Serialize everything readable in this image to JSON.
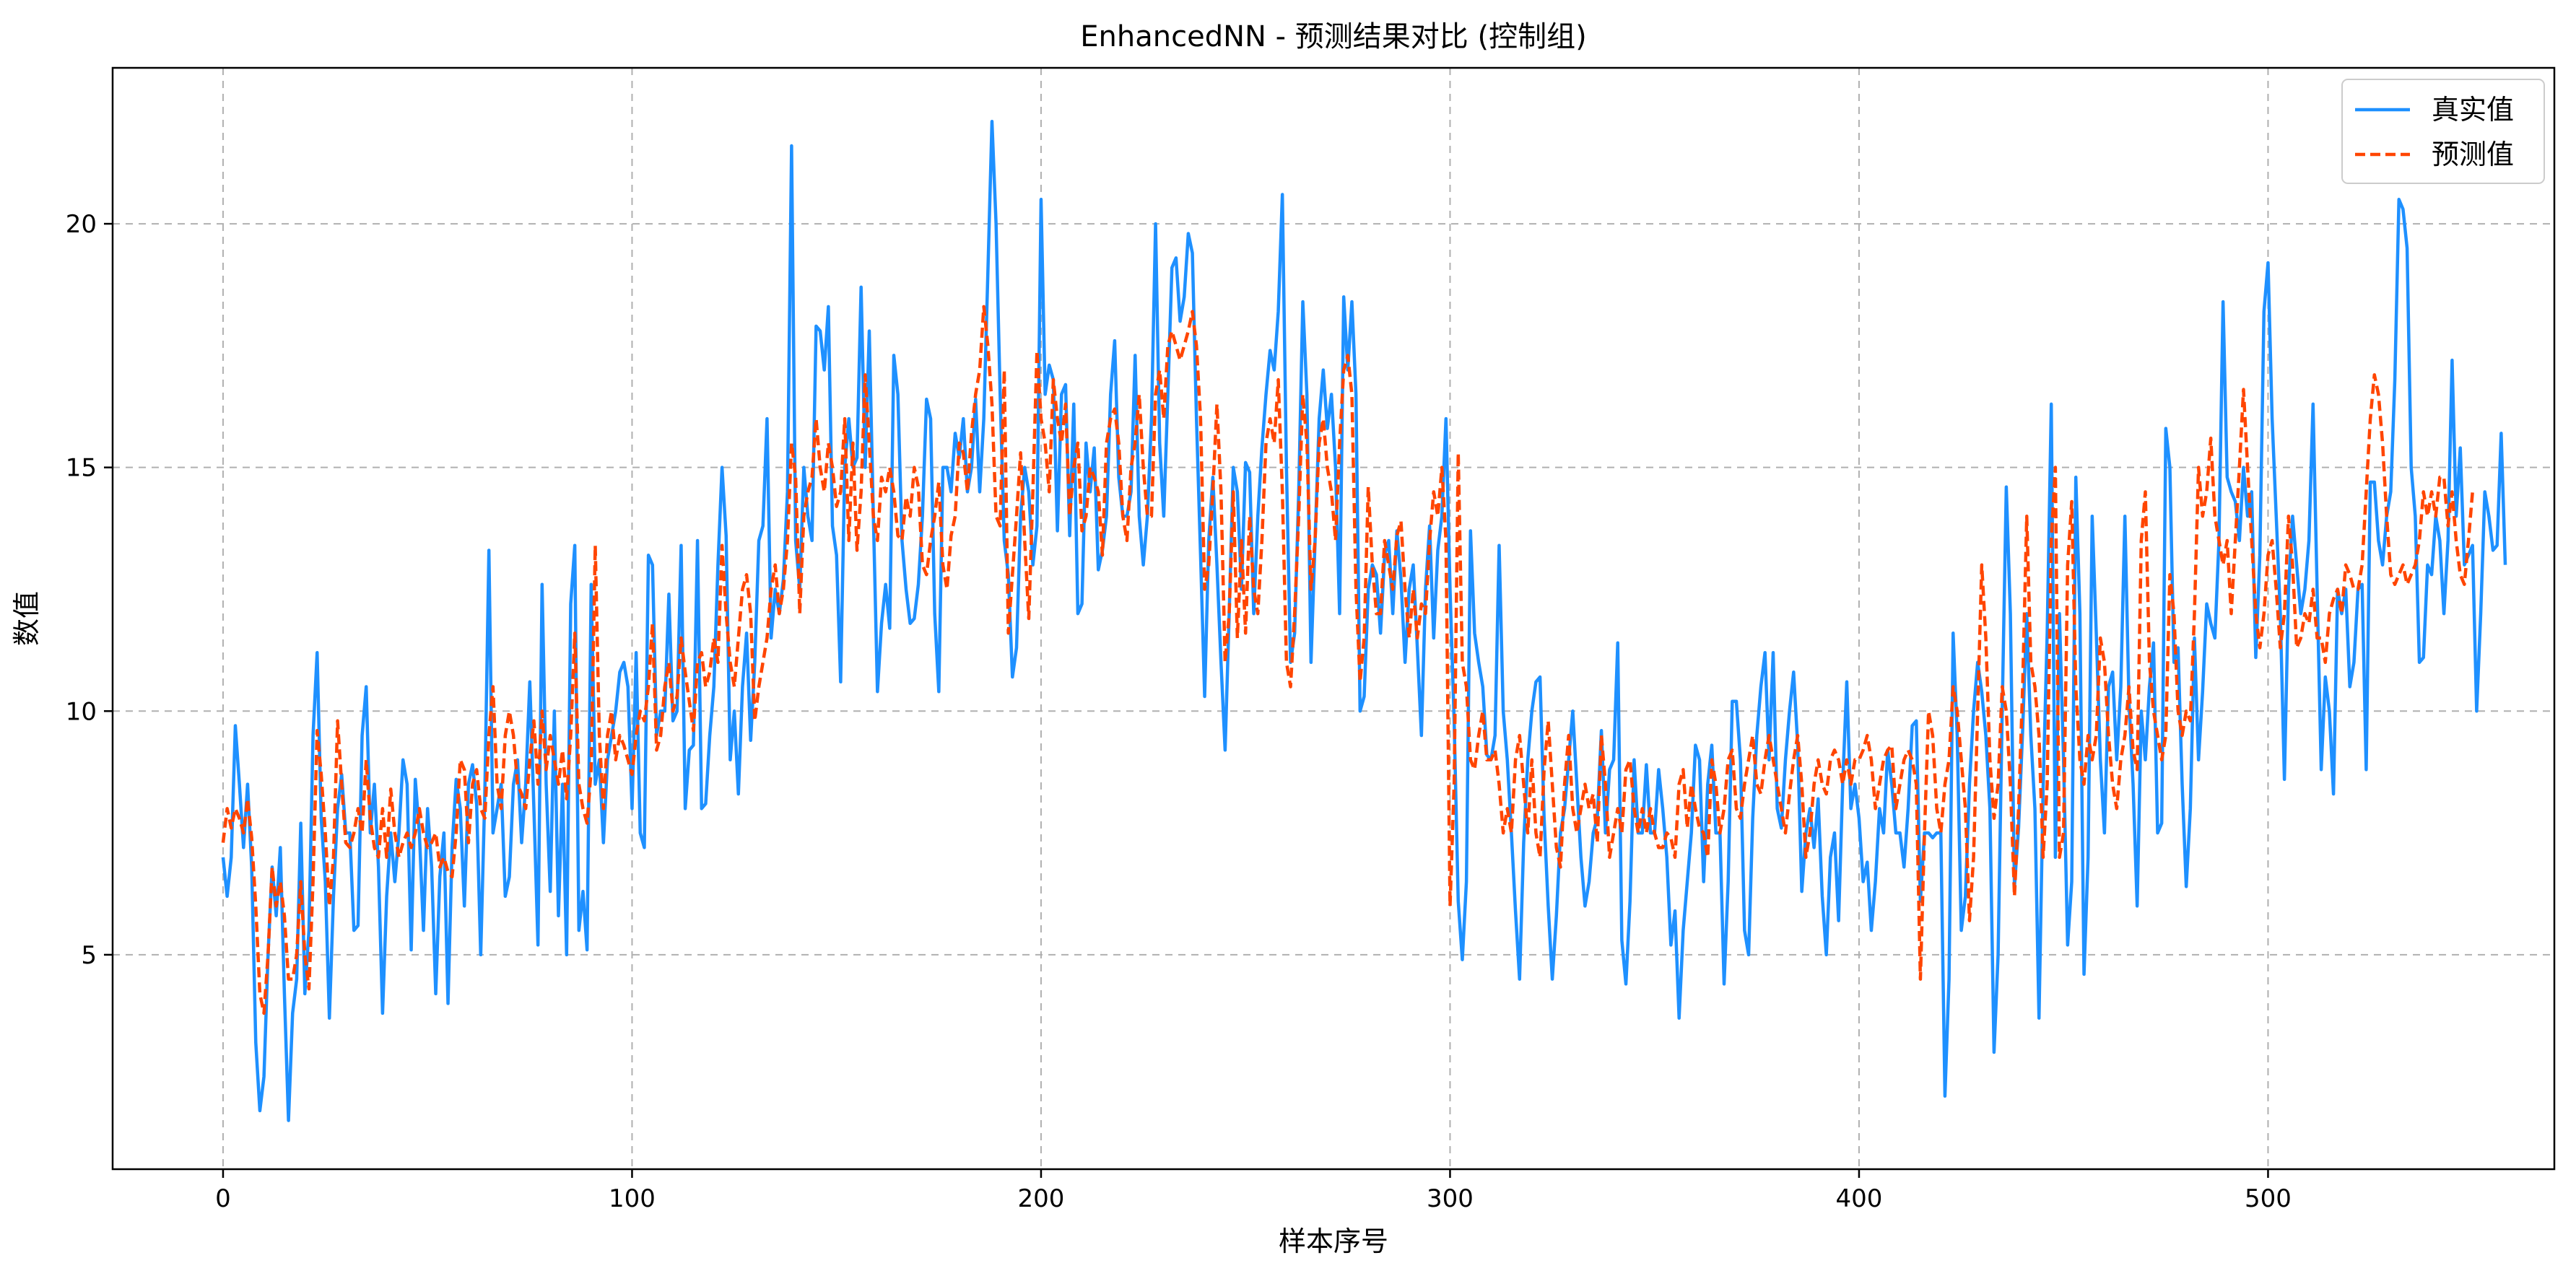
{
  "chart_data": {
    "type": "line",
    "title": "EnhancedNN - 预测结果对比 (控制组)",
    "xlabel": "样本序号",
    "ylabel": "数值",
    "xlim": [
      -27,
      570
    ],
    "ylim": [
      0.6,
      23.2
    ],
    "xticks": [
      0,
      100,
      200,
      300,
      400,
      500
    ],
    "yticks": [
      5,
      10,
      15,
      20
    ],
    "grid": true,
    "grid_style": "dashed",
    "legend_position": "top-right",
    "series": [
      {
        "name": "真实值",
        "color": "#1E90FF",
        "style": "solid",
        "values": [
          7.0,
          6.2,
          7.0,
          9.7,
          8.5,
          7.2,
          8.5,
          6.8,
          3.2,
          1.8,
          2.5,
          5.0,
          6.8,
          5.8,
          7.2,
          4.2,
          1.6,
          3.8,
          4.5,
          7.7,
          4.2,
          5.5,
          9.5,
          11.2,
          7.8,
          6.5,
          3.7,
          6.2,
          8.0,
          8.7,
          7.5,
          7.5,
          5.5,
          5.6,
          9.5,
          10.5,
          7.5,
          8.5,
          6.8,
          3.8,
          6.2,
          7.5,
          6.5,
          7.5,
          9.0,
          8.5,
          5.1,
          8.6,
          7.5,
          5.5,
          8.0,
          6.8,
          4.2,
          6.6,
          7.5,
          4.0,
          7.2,
          8.6,
          8.0,
          6.0,
          8.5,
          8.9,
          8.1,
          5.0,
          8.3,
          13.3,
          7.5,
          8.0,
          8.5,
          6.2,
          6.6,
          8.5,
          9.0,
          7.3,
          8.5,
          10.6,
          8.0,
          5.2,
          12.6,
          8.5,
          6.3,
          10.0,
          5.8,
          8.5,
          5.0,
          12.2,
          13.4,
          5.5,
          6.3,
          5.1,
          12.6,
          8.5,
          9.0,
          7.3,
          9.0,
          9.5,
          10.0,
          10.8,
          11.0,
          10.5,
          8.0,
          11.2,
          7.5,
          7.2,
          13.2,
          13.0,
          9.5,
          10.0,
          10.0,
          12.4,
          9.8,
          10.0,
          13.4,
          8.0,
          9.2,
          9.3,
          13.5,
          8.0,
          8.1,
          9.5,
          10.5,
          13.0,
          15.0,
          13.6,
          9.0,
          10.0,
          8.3,
          10.5,
          11.6,
          9.4,
          11.0,
          13.5,
          13.8,
          16.0,
          11.5,
          12.5,
          12.0,
          12.7,
          14.5,
          21.6,
          13.5,
          12.5,
          15.0,
          14.0,
          13.5,
          17.9,
          17.8,
          17.0,
          18.3,
          13.8,
          13.2,
          10.6,
          15.0,
          16.0,
          15.0,
          15.2,
          18.7,
          15.0,
          17.8,
          14.0,
          10.4,
          11.8,
          12.6,
          11.7,
          17.3,
          16.5,
          13.5,
          12.5,
          11.8,
          11.9,
          12.6,
          14.0,
          16.4,
          16.0,
          12.0,
          10.4,
          15.0,
          15.0,
          14.5,
          15.7,
          15.2,
          16.0,
          14.5,
          15.0,
          16.4,
          14.5,
          16.0,
          19.0,
          22.1,
          20.0,
          16.5,
          13.5,
          12.8,
          10.7,
          11.3,
          14.0,
          15.0,
          14.5,
          13.0,
          13.8,
          20.5,
          16.5,
          17.1,
          16.8,
          13.7,
          16.5,
          16.7,
          13.6,
          16.3,
          12.0,
          12.2,
          15.5,
          14.5,
          15.4,
          12.9,
          13.3,
          14.0,
          16.5,
          17.6,
          14.8,
          14.0,
          14.0,
          14.5,
          17.3,
          14.0,
          13.0,
          14.0,
          16.0,
          20.0,
          15.5,
          14.0,
          16.5,
          19.1,
          19.3,
          18.0,
          18.5,
          19.8,
          19.4,
          16.0,
          13.2,
          10.3,
          13.5,
          14.8,
          13.0,
          11.0,
          9.2,
          12.0,
          15.0,
          14.5,
          12.5,
          15.1,
          14.9,
          12.0,
          14.0,
          15.4,
          16.5,
          17.4,
          17.0,
          18.2,
          20.6,
          15.0,
          11.0,
          11.6,
          14.5,
          18.4,
          16.5,
          11.0,
          13.5,
          16.0,
          17.0,
          15.8,
          16.5,
          15.0,
          12.0,
          18.5,
          17.0,
          18.4,
          16.5,
          10.0,
          10.3,
          12.5,
          13.0,
          12.8,
          11.6,
          13.2,
          13.5,
          12.0,
          13.7,
          12.7,
          11.0,
          12.5,
          13.0,
          11.3,
          9.5,
          12.5,
          13.8,
          11.5,
          13.3,
          14.0,
          16.0,
          12.5,
          9.8,
          6.1,
          4.9,
          6.5,
          13.7,
          11.6,
          11.0,
          10.5,
          9.1,
          9.0,
          9.5,
          13.4,
          10.0,
          9.0,
          7.5,
          5.9,
          4.5,
          7.3,
          9.0,
          10.0,
          10.6,
          10.7,
          7.8,
          6.0,
          4.5,
          5.8,
          7.5,
          8.0,
          9.0,
          10.0,
          8.5,
          7.0,
          6.0,
          6.5,
          7.5,
          7.8,
          9.6,
          7.5,
          8.8,
          9.0,
          11.4,
          5.3,
          4.4,
          6.1,
          9.0,
          7.5,
          7.5,
          8.9,
          7.5,
          7.5,
          8.8,
          8.0,
          7.0,
          5.2,
          5.9,
          3.7,
          5.5,
          6.5,
          7.5,
          9.3,
          9.0,
          6.5,
          8.5,
          9.3,
          7.5,
          7.5,
          4.4,
          6.5,
          10.2,
          10.2,
          9.0,
          5.5,
          5.0,
          7.8,
          9.5,
          10.5,
          11.2,
          9.0,
          11.2,
          8.0,
          7.6,
          9.0,
          10.0,
          10.8,
          9.3,
          6.3,
          7.5,
          8.0,
          7.2,
          8.2,
          6.2,
          5.0,
          7.0,
          7.5,
          5.7,
          8.5,
          10.6,
          8.0,
          8.5,
          7.8,
          6.5,
          6.9,
          5.5,
          6.5,
          8.0,
          7.5,
          9.2,
          8.5,
          7.5,
          7.5,
          6.8,
          8.0,
          9.7,
          9.8,
          6.1,
          7.5,
          7.5,
          7.4,
          7.5,
          7.5,
          2.1,
          4.5,
          11.6,
          9.5,
          5.5,
          6.2,
          8.5,
          10.0,
          11.0,
          10.4,
          9.5,
          8.0,
          3.0,
          5.0,
          10.0,
          14.6,
          12.0,
          6.4,
          7.6,
          9.6,
          12.0,
          9.5,
          8.0,
          3.7,
          8.4,
          11.6,
          16.3,
          7.0,
          12.0,
          9.0,
          5.2,
          6.5,
          14.8,
          12.0,
          4.6,
          7.0,
          14.0,
          11.6,
          9.0,
          7.5,
          10.5,
          10.8,
          9.0,
          10.5,
          14.0,
          10.2,
          8.5,
          6.0,
          10.0,
          9.0,
          10.5,
          11.4,
          7.5,
          7.7,
          15.8,
          15.0,
          11.0,
          11.3,
          8.5,
          6.4,
          8.0,
          11.5,
          9.0,
          10.4,
          12.2,
          11.8,
          11.5,
          13.5,
          18.4,
          14.8,
          14.5,
          14.3,
          13.5,
          15.0,
          14.0,
          14.5,
          11.1,
          13.2,
          18.2,
          19.2,
          16.0,
          14.0,
          12.0,
          8.6,
          12.5,
          14.0,
          13.0,
          12.0,
          12.5,
          13.5,
          16.3,
          12.5,
          8.8,
          10.7,
          10.0,
          8.3,
          12.5,
          12.0,
          12.5,
          10.5,
          11.0,
          12.5,
          12.6,
          8.8,
          14.7,
          14.7,
          13.5,
          13.0,
          14.0,
          14.5,
          16.8,
          20.5,
          20.3,
          19.5,
          15.0,
          14.0,
          11.0,
          11.1,
          13.0,
          12.8,
          14.0,
          13.5,
          12.0,
          13.5,
          17.2,
          14.0,
          15.4,
          13.0,
          13.2,
          13.4,
          10.0,
          12.0,
          14.5,
          14.0,
          13.3,
          13.4,
          15.7,
          13.0
        ]
      },
      {
        "name": "预测值",
        "color": "#FF4500",
        "style": "dashed",
        "values": [
          7.3,
          8.0,
          7.6,
          8.0,
          7.8,
          7.5,
          8.2,
          7.4,
          6.0,
          4.2,
          3.8,
          5.0,
          6.8,
          6.0,
          6.5,
          5.8,
          4.5,
          4.5,
          5.0,
          6.5,
          5.0,
          4.3,
          6.5,
          9.6,
          8.7,
          7.5,
          6.0,
          7.0,
          9.8,
          8.5,
          7.3,
          7.2,
          7.5,
          8.0,
          7.5,
          9.0,
          7.8,
          7.2,
          7.0,
          8.0,
          7.0,
          8.4,
          7.5,
          7.0,
          7.3,
          7.5,
          7.2,
          7.5,
          8.0,
          7.5,
          7.2,
          7.3,
          7.5,
          6.8,
          7.0,
          6.7,
          6.6,
          7.5,
          9.0,
          8.8,
          7.3,
          8.5,
          8.8,
          8.0,
          7.8,
          9.5,
          10.5,
          8.5,
          8.0,
          9.5,
          10.0,
          9.5,
          8.5,
          8.3,
          8.0,
          9.0,
          9.8,
          8.5,
          10.0,
          8.8,
          9.5,
          9.0,
          8.5,
          9.2,
          8.2,
          9.5,
          11.6,
          8.5,
          8.0,
          7.7,
          8.8,
          13.4,
          9.5,
          8.0,
          9.5,
          10.0,
          9.0,
          9.5,
          9.3,
          9.0,
          8.7,
          9.5,
          10.0,
          9.8,
          10.5,
          11.8,
          9.2,
          9.5,
          10.5,
          11.0,
          10.0,
          10.3,
          11.5,
          10.8,
          10.2,
          9.6,
          11.0,
          11.2,
          10.5,
          10.8,
          11.5,
          11.0,
          13.4,
          12.0,
          11.0,
          10.5,
          11.5,
          12.5,
          12.8,
          12.0,
          9.8,
          10.5,
          11.0,
          11.5,
          12.5,
          13.0,
          12.0,
          12.5,
          13.5,
          15.5,
          14.8,
          12.0,
          14.0,
          14.5,
          14.8,
          16.0,
          15.0,
          14.5,
          15.5,
          15.0,
          14.2,
          14.5,
          16.0,
          13.5,
          15.5,
          13.3,
          14.5,
          16.9,
          15.5,
          14.0,
          13.5,
          14.8,
          14.5,
          15.0,
          14.5,
          13.6,
          13.5,
          14.4,
          14.0,
          15.0,
          14.6,
          13.0,
          12.8,
          13.5,
          14.0,
          14.7,
          13.0,
          12.5,
          13.6,
          14.0,
          15.5,
          15.3,
          14.5,
          15.7,
          16.5,
          17.0,
          18.3,
          17.5,
          16.3,
          14.0,
          13.8,
          17.0,
          11.6,
          12.8,
          14.0,
          15.3,
          13.5,
          11.9,
          14.5,
          17.4,
          16.0,
          15.5,
          14.5,
          16.8,
          16.0,
          15.5,
          16.3,
          14.0,
          15.0,
          15.5,
          13.7,
          14.0,
          15.0,
          14.8,
          14.5,
          13.2,
          15.5,
          16.0,
          16.2,
          15.5,
          14.0,
          13.5,
          15.0,
          15.5,
          16.5,
          15.0,
          14.0,
          14.0,
          16.5,
          17.0,
          16.0,
          17.5,
          17.8,
          17.5,
          17.2,
          17.5,
          17.8,
          18.2,
          17.5,
          16.0,
          12.5,
          13.0,
          14.5,
          16.3,
          14.5,
          11.0,
          12.0,
          14.5,
          11.5,
          13.5,
          11.6,
          14.0,
          12.5,
          12.0,
          13.5,
          15.5,
          16.0,
          15.5,
          16.8,
          14.5,
          11.0,
          10.5,
          12.0,
          14.0,
          16.5,
          15.5,
          12.5,
          13.5,
          15.5,
          16.0,
          15.0,
          14.5,
          13.5,
          15.5,
          17.0,
          17.3,
          16.5,
          12.5,
          10.6,
          11.5,
          14.6,
          13.0,
          12.0,
          12.0,
          13.5,
          13.0,
          12.5,
          13.6,
          13.9,
          12.5,
          11.5,
          12.5,
          11.5,
          12.2,
          12.0,
          13.5,
          14.5,
          14.0,
          15.0,
          13.5,
          6.0,
          8.5,
          15.3,
          11.0,
          10.5,
          9.0,
          8.8,
          9.5,
          10.0,
          9.0,
          9.0,
          9.2,
          8.5,
          7.5,
          8.0,
          7.5,
          9.0,
          9.5,
          8.5,
          7.5,
          9.0,
          7.5,
          7.0,
          8.8,
          9.8,
          8.5,
          7.2,
          6.8,
          8.5,
          9.5,
          8.0,
          7.5,
          8.0,
          8.5,
          8.0,
          8.3,
          7.3,
          9.5,
          8.5,
          7.0,
          7.5,
          8.0,
          7.5,
          8.8,
          9.0,
          8.0,
          7.5,
          8.0,
          7.5,
          8.0,
          7.5,
          7.2,
          7.2,
          7.5,
          7.4,
          7.0,
          8.5,
          8.8,
          7.6,
          8.5,
          8.0,
          7.6,
          7.5,
          7.0,
          9.0,
          8.5,
          7.5,
          8.0,
          9.0,
          9.2,
          8.0,
          7.8,
          8.5,
          9.0,
          9.5,
          8.5,
          8.3,
          9.0,
          9.5,
          9.0,
          8.5,
          8.0,
          7.5,
          8.3,
          9.0,
          9.5,
          8.5,
          7.0,
          7.5,
          8.5,
          9.0,
          8.5,
          8.3,
          9.0,
          9.2,
          9.0,
          8.5,
          9.0,
          8.5,
          9.0,
          9.0,
          9.2,
          9.5,
          9.0,
          8.0,
          8.5,
          9.0,
          9.2,
          9.3,
          8.0,
          8.5,
          9.0,
          9.2,
          9.0,
          8.5,
          4.5,
          7.5,
          10.0,
          9.5,
          8.0,
          7.5,
          8.5,
          9.0,
          10.5,
          10.0,
          9.0,
          8.0,
          5.7,
          7.0,
          10.0,
          13.0,
          11.5,
          9.0,
          7.8,
          8.5,
          10.5,
          10.0,
          8.5,
          6.2,
          8.0,
          10.5,
          14.0,
          11.0,
          10.5,
          9.5,
          7.0,
          8.5,
          13.5,
          15.0,
          7.0,
          7.5,
          13.0,
          14.3,
          10.5,
          9.0,
          8.5,
          9.5,
          9.0,
          9.5,
          11.5,
          11.0,
          9.5,
          8.5,
          8.0,
          9.0,
          9.5,
          10.5,
          9.2,
          8.8,
          13.5,
          14.5,
          11.0,
          10.0,
          9.5,
          9.0,
          9.5,
          12.8,
          12.0,
          10.0,
          9.5,
          10.0,
          9.8,
          12.0,
          15.0,
          14.0,
          14.5,
          15.6,
          14.0,
          13.5,
          13.0,
          13.5,
          12.0,
          13.5,
          15.0,
          16.6,
          15.0,
          13.5,
          12.0,
          11.3,
          12.0,
          13.2,
          13.5,
          12.5,
          11.3,
          12.0,
          14.0,
          13.0,
          11.3,
          11.5,
          12.0,
          11.8,
          12.5,
          11.5,
          11.5,
          11.0,
          12.0,
          12.3,
          12.5,
          12.0,
          13.0,
          12.8,
          12.5,
          12.5,
          13.0,
          14.5,
          16.0,
          16.9,
          16.5,
          15.5,
          14.0,
          12.8,
          12.6,
          12.8,
          13.0,
          12.6,
          12.8,
          13.0,
          13.5,
          14.5,
          14.0,
          14.5,
          14.0,
          14.8,
          14.8,
          13.8,
          14.5,
          13.5,
          12.8,
          12.6,
          13.5,
          14.5
        ]
      }
    ]
  }
}
